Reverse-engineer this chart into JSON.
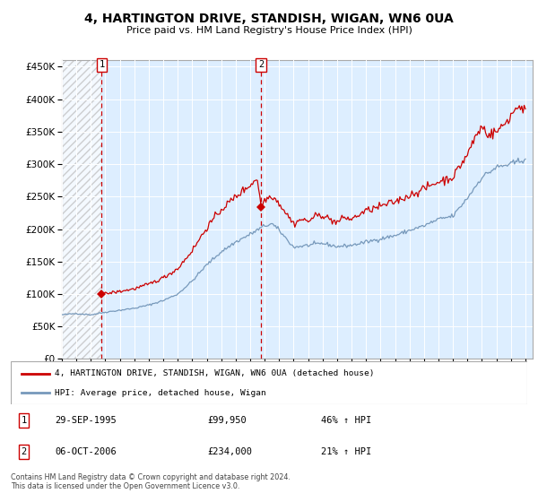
{
  "title": "4, HARTINGTON DRIVE, STANDISH, WIGAN, WN6 0UA",
  "subtitle": "Price paid vs. HM Land Registry's House Price Index (HPI)",
  "legend_line1": "4, HARTINGTON DRIVE, STANDISH, WIGAN, WN6 0UA (detached house)",
  "legend_line2": "HPI: Average price, detached house, Wigan",
  "annotation1_date": "29-SEP-1995",
  "annotation1_price": "£99,950",
  "annotation1_hpi": "46% ↑ HPI",
  "annotation2_date": "06-OCT-2006",
  "annotation2_price": "£234,000",
  "annotation2_hpi": "21% ↑ HPI",
  "footnote": "Contains HM Land Registry data © Crown copyright and database right 2024.\nThis data is licensed under the Open Government Licence v3.0.",
  "red_color": "#cc0000",
  "blue_color": "#7799bb",
  "bg_color": "#ddeeff",
  "sale1_x": 1995.75,
  "sale1_y": 99950,
  "sale2_x": 2006.75,
  "sale2_y": 234000,
  "ylim": [
    0,
    460000
  ],
  "xlim_start": 1993.0,
  "xlim_end": 2025.5
}
